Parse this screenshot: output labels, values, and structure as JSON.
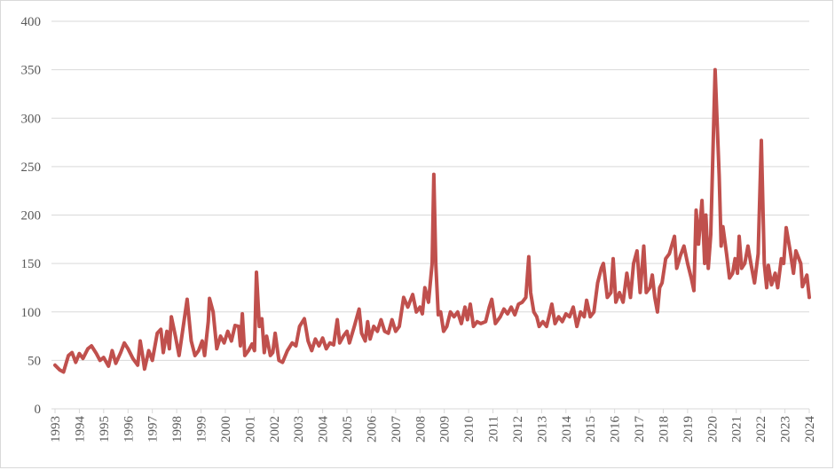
{
  "chart_data": {
    "type": "line",
    "x": [
      1993.0,
      1993.2,
      1993.35,
      1993.55,
      1993.7,
      1993.85,
      1994.0,
      1994.15,
      1994.35,
      1994.5,
      1994.7,
      1994.85,
      1995.0,
      1995.2,
      1995.35,
      1995.5,
      1995.7,
      1995.85,
      1996.0,
      1996.2,
      1996.4,
      1996.5,
      1996.6,
      1996.68,
      1996.85,
      1997.0,
      1997.2,
      1997.35,
      1997.45,
      1997.6,
      1997.7,
      1997.78,
      1997.95,
      1998.1,
      1998.3,
      1998.43,
      1998.6,
      1998.75,
      1998.9,
      1999.05,
      1999.15,
      1999.3,
      1999.35,
      1999.5,
      1999.65,
      1999.8,
      1999.95,
      2000.1,
      2000.25,
      2000.4,
      2000.55,
      2000.62,
      2000.7,
      2000.8,
      2000.95,
      2001.1,
      2001.2,
      2001.28,
      2001.4,
      2001.5,
      2001.6,
      2001.7,
      2001.85,
      2001.95,
      2002.05,
      2002.2,
      2002.35,
      2002.55,
      2002.75,
      2002.9,
      2003.05,
      2003.25,
      2003.4,
      2003.55,
      2003.7,
      2003.85,
      2004.0,
      2004.15,
      2004.3,
      2004.45,
      2004.6,
      2004.7,
      2004.85,
      2005.0,
      2005.1,
      2005.3,
      2005.5,
      2005.6,
      2005.75,
      2005.85,
      2005.95,
      2006.1,
      2006.25,
      2006.4,
      2006.55,
      2006.7,
      2006.85,
      2007.0,
      2007.15,
      2007.33,
      2007.5,
      2007.7,
      2007.85,
      2008.0,
      2008.1,
      2008.2,
      2008.35,
      2008.5,
      2008.57,
      2008.65,
      2008.75,
      2008.85,
      2008.97,
      2009.1,
      2009.25,
      2009.4,
      2009.55,
      2009.7,
      2009.85,
      2009.95,
      2010.07,
      2010.2,
      2010.35,
      2010.5,
      2010.7,
      2010.85,
      2010.95,
      2011.1,
      2011.3,
      2011.45,
      2011.6,
      2011.75,
      2011.9,
      2012.05,
      2012.2,
      2012.35,
      2012.47,
      2012.55,
      2012.68,
      2012.8,
      2012.9,
      2013.05,
      2013.2,
      2013.3,
      2013.42,
      2013.55,
      2013.7,
      2013.85,
      2014.0,
      2014.15,
      2014.3,
      2014.45,
      2014.6,
      2014.75,
      2014.85,
      2015.0,
      2015.15,
      2015.3,
      2015.45,
      2015.54,
      2015.7,
      2015.85,
      2015.94,
      2016.05,
      2016.2,
      2016.35,
      2016.5,
      2016.65,
      2016.78,
      2016.92,
      2017.05,
      2017.2,
      2017.3,
      2017.45,
      2017.55,
      2017.65,
      2017.76,
      2017.85,
      2017.95,
      2018.1,
      2018.25,
      2018.46,
      2018.55,
      2018.7,
      2018.85,
      2019.0,
      2019.15,
      2019.26,
      2019.35,
      2019.45,
      2019.59,
      2019.7,
      2019.75,
      2019.85,
      2019.95,
      2020.13,
      2020.3,
      2020.38,
      2020.45,
      2020.6,
      2020.72,
      2020.85,
      2020.95,
      2021.05,
      2021.12,
      2021.22,
      2021.35,
      2021.48,
      2021.6,
      2021.75,
      2021.9,
      2022.03,
      2022.15,
      2022.25,
      2022.32,
      2022.45,
      2022.6,
      2022.7,
      2022.85,
      2022.95,
      2023.05,
      2023.2,
      2023.35,
      2023.45,
      2023.65,
      2023.72,
      2023.9,
      2024.0
    ],
    "series": [
      {
        "color": "#c0504d",
        "values": [
          45,
          40,
          38,
          55,
          58,
          48,
          57,
          52,
          62,
          65,
          57,
          50,
          53,
          44,
          60,
          47,
          58,
          68,
          62,
          52,
          45,
          70,
          55,
          41,
          60,
          50,
          78,
          82,
          58,
          80,
          62,
          95,
          75,
          55,
          90,
          113,
          70,
          55,
          60,
          70,
          55,
          90,
          114,
          100,
          62,
          75,
          68,
          80,
          70,
          86,
          85,
          65,
          98,
          55,
          60,
          67,
          60,
          141,
          85,
          93,
          58,
          75,
          55,
          58,
          78,
          50,
          48,
          60,
          68,
          65,
          85,
          93,
          70,
          60,
          72,
          65,
          73,
          62,
          68,
          66,
          92,
          68,
          75,
          80,
          68,
          85,
          103,
          78,
          70,
          90,
          72,
          85,
          80,
          92,
          80,
          78,
          92,
          80,
          85,
          115,
          105,
          118,
          100,
          105,
          98,
          125,
          110,
          150,
          242,
          150,
          97,
          100,
          80,
          85,
          100,
          95,
          100,
          88,
          105,
          92,
          108,
          85,
          90,
          88,
          90,
          105,
          113,
          88,
          95,
          103,
          98,
          105,
          97,
          108,
          110,
          115,
          157,
          120,
          100,
          95,
          85,
          90,
          85,
          95,
          108,
          88,
          95,
          90,
          98,
          95,
          105,
          85,
          100,
          95,
          112,
          95,
          100,
          130,
          145,
          150,
          115,
          120,
          155,
          110,
          120,
          110,
          140,
          115,
          150,
          163,
          120,
          168,
          120,
          125,
          138,
          115,
          100,
          125,
          130,
          155,
          160,
          178,
          145,
          158,
          168,
          150,
          135,
          122,
          205,
          170,
          215,
          150,
          200,
          145,
          180,
          350,
          240,
          168,
          188,
          160,
          135,
          140,
          155,
          140,
          178,
          145,
          150,
          168,
          150,
          130,
          160,
          277,
          150,
          125,
          148,
          128,
          140,
          125,
          155,
          150,
          187,
          165,
          140,
          163,
          150,
          126,
          138,
          115
        ]
      }
    ],
    "xlim": [
      1993,
      2024
    ],
    "xticks": [
      1993,
      1994,
      1995,
      1996,
      1997,
      1998,
      1999,
      2000,
      2001,
      2002,
      2003,
      2004,
      2005,
      2006,
      2007,
      2008,
      2009,
      2010,
      2011,
      2012,
      2013,
      2014,
      2015,
      2016,
      2017,
      2018,
      2019,
      2020,
      2021,
      2022,
      2023,
      2024
    ],
    "ylim": [
      0,
      400
    ],
    "yticks": [
      0,
      50,
      100,
      150,
      200,
      250,
      300,
      350,
      400
    ],
    "grid": true
  }
}
